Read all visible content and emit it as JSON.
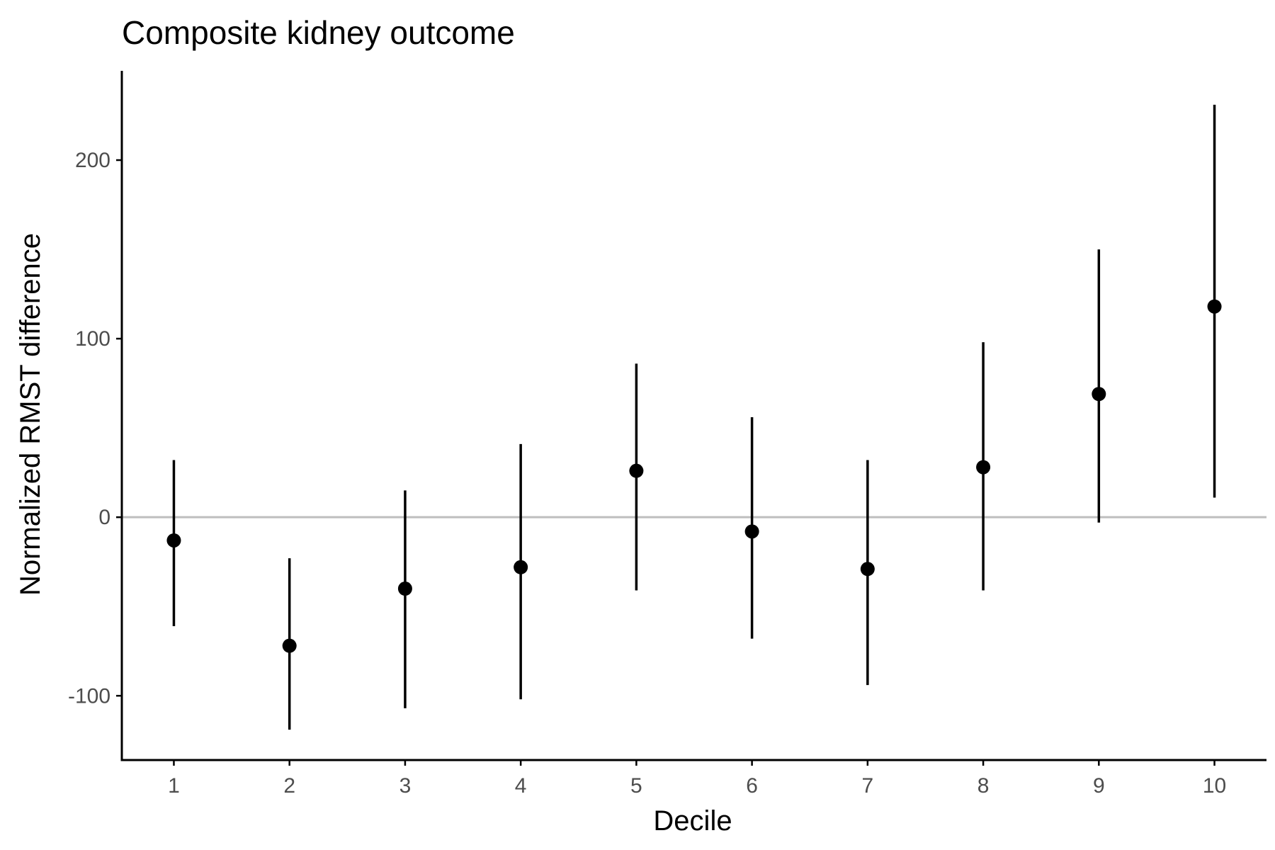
{
  "chart_data": {
    "type": "scatter",
    "subtype": "point-range",
    "title": "Composite kidney outcome",
    "xlabel": "Decile",
    "ylabel": "Normalized RMST difference",
    "x": [
      1,
      2,
      3,
      4,
      5,
      6,
      7,
      8,
      9,
      10
    ],
    "x_tick_labels": [
      "1",
      "2",
      "3",
      "4",
      "5",
      "6",
      "7",
      "8",
      "9",
      "10"
    ],
    "y": [
      -13,
      -72,
      -40,
      -28,
      26,
      -8,
      -29,
      28,
      69,
      118
    ],
    "y_lower": [
      -61,
      -119,
      -107,
      -102,
      -41,
      -68,
      -94,
      -41,
      -3,
      11
    ],
    "y_upper": [
      32,
      -23,
      15,
      41,
      86,
      56,
      32,
      98,
      150,
      231
    ],
    "y_ticks": [
      -100,
      0,
      100,
      200
    ],
    "y_tick_labels": [
      "-100",
      "0",
      "100",
      "200"
    ],
    "xlim": [
      0.55,
      10.45
    ],
    "ylim": [
      -136,
      250
    ],
    "reference_line": 0,
    "grid": false,
    "legend": "none",
    "colors": {
      "points": "#000000",
      "reference_line": "#bebebe",
      "axis": "#000000",
      "tick_text": "#4d4d4d"
    }
  }
}
